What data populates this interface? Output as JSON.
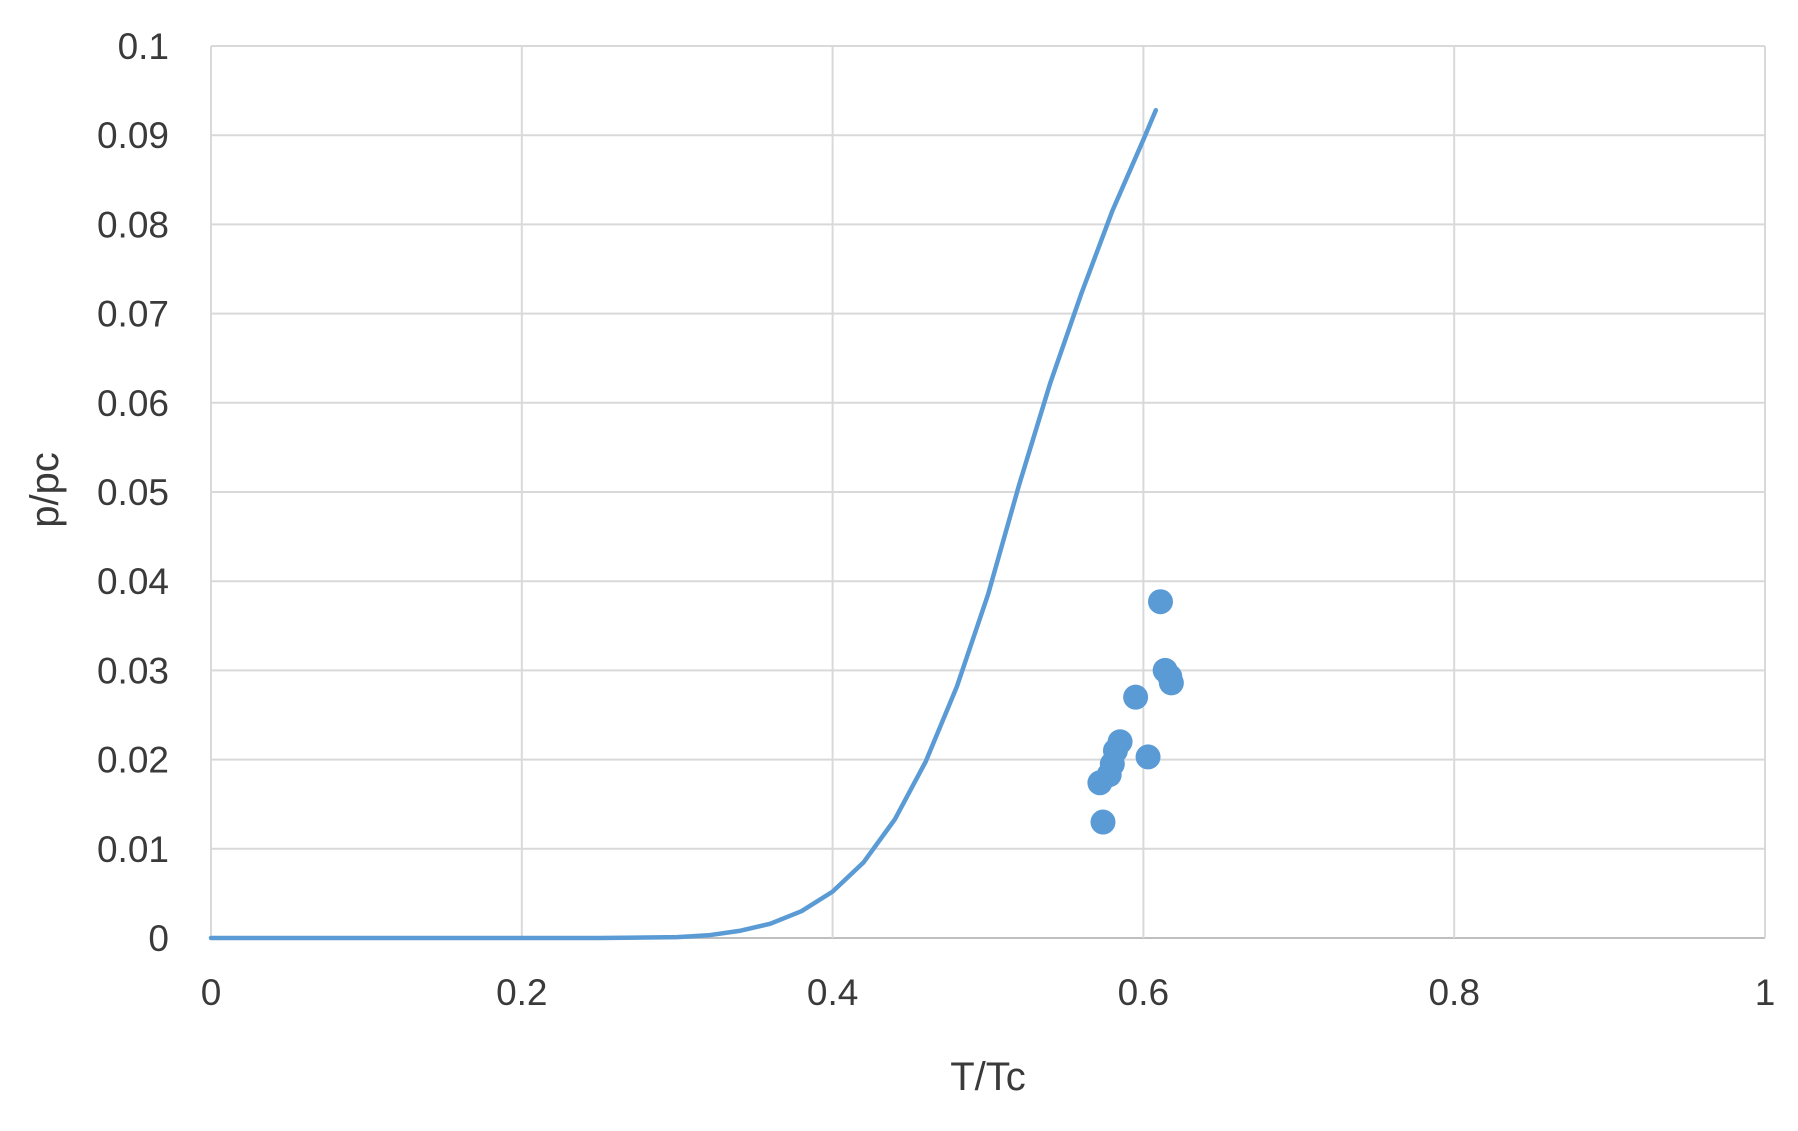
{
  "chart_data": {
    "type": "scatter",
    "xlabel": "T/Tc",
    "ylabel": "p/pc",
    "xlim": [
      0,
      1
    ],
    "ylim": [
      0,
      0.1
    ],
    "x_ticks": [
      {
        "value": 0,
        "label": "0"
      },
      {
        "value": 0.2,
        "label": "0.2"
      },
      {
        "value": 0.4,
        "label": "0.4"
      },
      {
        "value": 0.6,
        "label": "0.6"
      },
      {
        "value": 0.8,
        "label": "0.8"
      },
      {
        "value": 1,
        "label": "1"
      }
    ],
    "y_ticks": [
      {
        "value": 0,
        "label": "0"
      },
      {
        "value": 0.01,
        "label": "0.01"
      },
      {
        "value": 0.02,
        "label": "0.02"
      },
      {
        "value": 0.03,
        "label": "0.03"
      },
      {
        "value": 0.04,
        "label": "0.04"
      },
      {
        "value": 0.05,
        "label": "0.05"
      },
      {
        "value": 0.06,
        "label": "0.06"
      },
      {
        "value": 0.07,
        "label": "0.07"
      },
      {
        "value": 0.08,
        "label": "0.08"
      },
      {
        "value": 0.09,
        "label": "0.09"
      },
      {
        "value": 0.1,
        "label": "0.1"
      }
    ],
    "grid": true,
    "legend": "none",
    "color": "#5b9bd5",
    "series": [
      {
        "kind": "line",
        "x": [
          0,
          0.1,
          0.2,
          0.25,
          0.3,
          0.32,
          0.34,
          0.36,
          0.38,
          0.4,
          0.42,
          0.44,
          0.46,
          0.48,
          0.5,
          0.52,
          0.54,
          0.56,
          0.58,
          0.6,
          0.608
        ],
        "y": [
          0,
          0,
          0,
          0,
          0.0001,
          0.0003,
          0.0008,
          0.0016,
          0.003,
          0.0052,
          0.0085,
          0.0133,
          0.0198,
          0.0282,
          0.0385,
          0.0508,
          0.0622,
          0.0722,
          0.0815,
          0.0895,
          0.0928
        ]
      },
      {
        "kind": "points",
        "x": [
          0.572,
          0.574,
          0.578,
          0.58,
          0.582,
          0.585,
          0.595,
          0.603,
          0.611,
          0.614,
          0.617,
          0.618
        ],
        "y": [
          0.0174,
          0.013,
          0.0183,
          0.0195,
          0.021,
          0.022,
          0.027,
          0.0203,
          0.0377,
          0.03,
          0.0293,
          0.0286
        ]
      }
    ]
  }
}
